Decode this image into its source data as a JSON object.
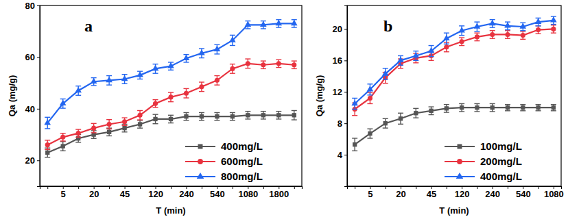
{
  "chart_data": [
    {
      "type": "line",
      "title": "a",
      "x_label": "T (min)",
      "y_label": "Qa (mg/g)",
      "categories": [
        null,
        "5",
        null,
        "20",
        null,
        "45",
        null,
        "120",
        null,
        "240",
        null,
        "540",
        null,
        "1080",
        null,
        "1800",
        null
      ],
      "ylim": [
        10,
        80
      ],
      "yticks": [
        20,
        40,
        60,
        80
      ],
      "legend": "lower right",
      "series": [
        {
          "name": "400mg/L",
          "color": "#555555",
          "marker": "square",
          "values": [
            23,
            25.5,
            28.5,
            30,
            31,
            32.5,
            34,
            36,
            36,
            37,
            37,
            37,
            37,
            37.5,
            37.5,
            37.5,
            37.5
          ],
          "errors": [
            1.8,
            1.8,
            1.5,
            1.5,
            1.5,
            1.5,
            1.5,
            1.8,
            1.5,
            1.5,
            1.5,
            1.5,
            1.5,
            1.5,
            1.5,
            1.5,
            1.8
          ]
        },
        {
          "name": "600mg/L",
          "color": "#e8333f",
          "marker": "circle",
          "values": [
            26,
            29,
            30.5,
            32.5,
            34,
            35,
            37.5,
            42,
            44.5,
            46,
            48.5,
            51,
            55.5,
            57.5,
            57,
            57.5,
            57
          ],
          "errors": [
            1.8,
            1.5,
            1.5,
            1.8,
            1.8,
            1.5,
            1.8,
            1.5,
            1.8,
            1.8,
            1.8,
            1.8,
            1.8,
            1.8,
            1.5,
            1.5,
            1.5
          ]
        },
        {
          "name": "800mg/L",
          "color": "#2366f0",
          "marker": "triangle",
          "values": [
            34.5,
            42,
            47,
            50.5,
            51,
            51.5,
            53,
            55.5,
            56.5,
            59.5,
            61.5,
            63,
            66.5,
            72.5,
            72.5,
            73,
            73
          ],
          "errors": [
            2.2,
            1.8,
            1.8,
            1.5,
            1.8,
            1.8,
            1.5,
            1.8,
            1.5,
            1.5,
            1.8,
            1.8,
            2,
            1.5,
            1.5,
            1.5,
            1.5
          ]
        }
      ]
    },
    {
      "type": "line",
      "title": "b",
      "x_label": "T (min)",
      "y_label": "Qa (mg/g)",
      "categories": [
        null,
        "5",
        null,
        "20",
        null,
        "45",
        null,
        "120",
        null,
        "240",
        null,
        "540",
        null,
        "1080"
      ],
      "ylim": [
        0,
        23
      ],
      "yticks": [
        4,
        8,
        12,
        16,
        20
      ],
      "legend": "lower right",
      "series": [
        {
          "name": "100mg/L",
          "color": "#555555",
          "marker": "square",
          "values": [
            5.3,
            6.7,
            8,
            8.6,
            9.3,
            9.6,
            9.9,
            10,
            10,
            10,
            10,
            10,
            10,
            10
          ],
          "errors": [
            0.8,
            0.6,
            0.6,
            0.7,
            0.6,
            0.5,
            0.5,
            0.5,
            0.5,
            0.5,
            0.4,
            0.4,
            0.4,
            0.4
          ]
        },
        {
          "name": "200mg/L",
          "color": "#e8333f",
          "marker": "circle",
          "values": [
            9.8,
            11.2,
            13.8,
            15.6,
            16.3,
            16.6,
            17.7,
            18.4,
            19,
            19.3,
            19.3,
            19.2,
            19.9,
            20
          ],
          "errors": [
            0.8,
            0.7,
            0.7,
            0.6,
            0.6,
            0.6,
            0.6,
            0.5,
            0.5,
            0.5,
            0.5,
            0.5,
            0.5,
            0.5
          ]
        },
        {
          "name": "400mg/L",
          "color": "#2366f0",
          "marker": "triangle",
          "values": [
            10.5,
            12.3,
            14.3,
            16,
            16.6,
            17.2,
            18.8,
            19.8,
            20.3,
            20.7,
            20.4,
            20.3,
            20.9,
            21.1
          ],
          "errors": [
            0.7,
            0.7,
            0.7,
            0.6,
            0.6,
            0.7,
            0.7,
            0.6,
            0.6,
            0.5,
            0.5,
            0.5,
            0.5,
            0.5
          ]
        }
      ]
    }
  ]
}
